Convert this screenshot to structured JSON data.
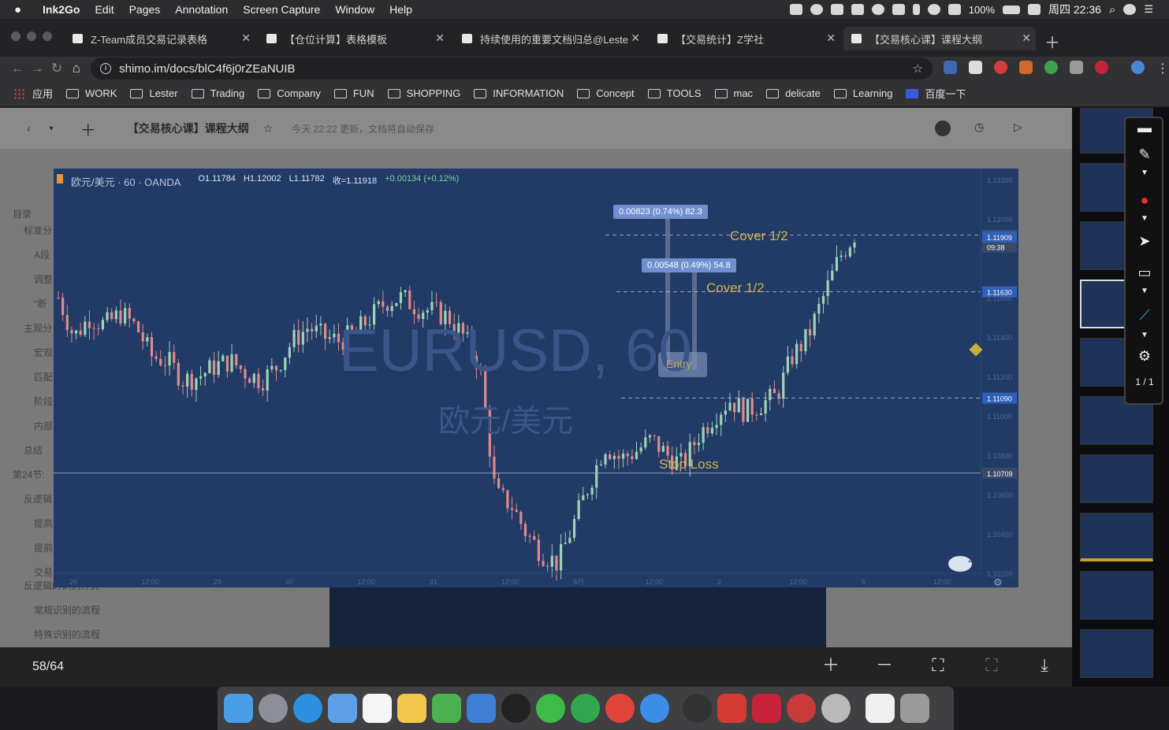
{
  "menubar": {
    "app_name": "Ink2Go",
    "items": [
      "Edit",
      "Pages",
      "Annotation",
      "Screen Capture",
      "Window",
      "Help"
    ],
    "battery": "100%",
    "clock": "周四 22:36"
  },
  "tabs": [
    {
      "title": "Z-Team成员交易记录表格",
      "active": false
    },
    {
      "title": "【仓位计算】表格模板",
      "active": false
    },
    {
      "title": "持续使用的重要文档归总@Leste",
      "active": false
    },
    {
      "title": "【交易统计】Z学社",
      "active": false
    },
    {
      "title": "【交易核心课】课程大纲",
      "active": true
    }
  ],
  "address_bar": {
    "url": "shimo.im/docs/blC4f6j0rZEaNUIB"
  },
  "bookmarks": [
    "应用",
    "WORK",
    "Lester",
    "Trading",
    "Company",
    "FUN",
    "SHOPPING",
    "INFORMATION",
    "Concept",
    "TOOLS",
    "mac",
    "delicate",
    "Learning",
    "百度一下"
  ],
  "doc": {
    "title": "【交易核心课】课程大纲",
    "save_status": "今天 22:22 更新，文档将自动保存",
    "outline": [
      "目录",
      "标准分",
      "A段",
      "调整",
      "“断",
      "主观分",
      "宏观",
      "匹配",
      "阶段",
      "内部",
      "总结",
      "第24节:",
      "反逻辑",
      "提高",
      "提前",
      "交易",
      "反逻辑的识别方式",
      "常规识别的流程",
      "特殊识别的流程"
    ]
  },
  "chart": {
    "symbol": "欧元/美元 · 60 · OANDA",
    "ohlc": {
      "o": "O1.11784",
      "h": "H1.12002",
      "l": "L1.11782",
      "c": "收=1.11918",
      "chg": "+0.00134 (+0.12%)"
    },
    "watermark_symbol": "EURUSD, 60",
    "watermark_name": "欧元/美元",
    "price_axis": [
      "1.12200",
      "1.12000",
      "1.11918",
      "09:38",
      "1.11909",
      "1.11630",
      "1.11600",
      "1.11400",
      "1.11200",
      "1.11090",
      "1.11000",
      "1.10800",
      "1.10709",
      "1.10600",
      "1.10400",
      "1.10200"
    ],
    "time_axis": [
      "26",
      "12:00",
      "29",
      "30",
      "12:00",
      "31",
      "12:00",
      "8月",
      "12:00",
      "2",
      "12:00",
      "5",
      "12:00"
    ],
    "measure_1": "0.00823 (0.74%) 82.3",
    "measure_2": "0.00548 (0.49%) 54.8",
    "cover_1": "Cover 1/2",
    "cover_2": "Cover 1/2",
    "entry": "Entry",
    "stop_loss": "Stop Loss",
    "badge": "2"
  },
  "chart_data": {
    "type": "candlestick",
    "title": "EURUSD, 60",
    "ylim": [
      1.102,
      1.122
    ],
    "levels": [
      {
        "name": "Cover 1/2",
        "price": 1.11918
      },
      {
        "name": "Cover 1/2",
        "price": 1.1163
      },
      {
        "name": "Entry",
        "price": 1.1109
      },
      {
        "name": "Stop Loss",
        "price": 1.10709
      }
    ],
    "close_path": [
      1.116,
      1.114,
      1.115,
      1.1146,
      1.1152,
      1.1145,
      1.113,
      1.1128,
      1.1118,
      1.112,
      1.1125,
      1.1128,
      1.1122,
      1.1118,
      1.1125,
      1.1138,
      1.1145,
      1.114,
      1.1138,
      1.1142,
      1.115,
      1.1158,
      1.116,
      1.1155,
      1.1153,
      1.115,
      1.114,
      1.1125,
      1.106,
      1.1055,
      1.104,
      1.103,
      1.1025,
      1.1045,
      1.1065,
      1.1085,
      1.1078,
      1.1082,
      1.1088,
      1.108,
      1.1075,
      1.109,
      1.11,
      1.1108,
      1.1102,
      1.1106,
      1.111,
      1.113,
      1.114,
      1.116,
      1.118,
      1.1192
    ]
  },
  "viewer": {
    "page_counter": "58/64",
    "annot_pages": "1 / 1"
  }
}
